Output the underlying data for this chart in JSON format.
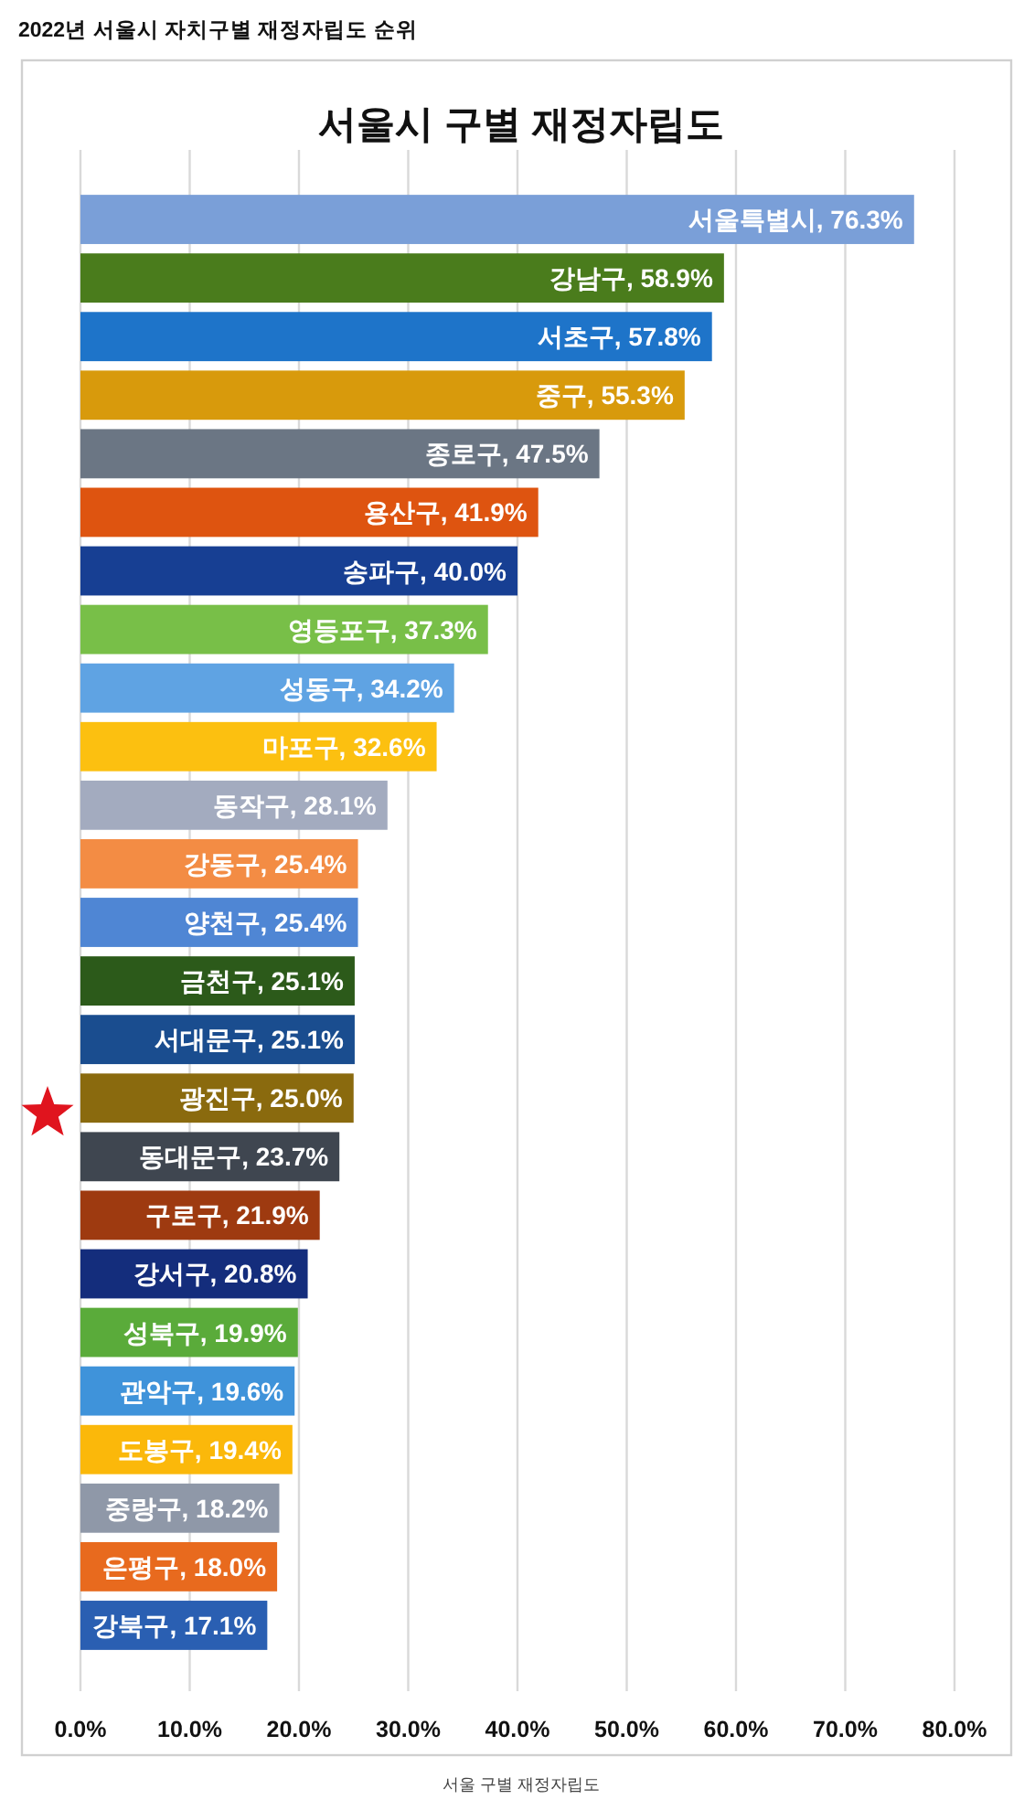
{
  "chart_data": {
    "type": "bar",
    "orientation": "horizontal",
    "title": "서울시 구별 재정자립도",
    "annotations": [
      "2022년 서울시 자치구별 재정자립도 순위",
      "서울 구별 재정자립도"
    ],
    "categories": [
      "서울특별시",
      "강남구",
      "서초구",
      "중구",
      "종로구",
      "용산구",
      "송파구",
      "영등포구",
      "성동구",
      "마포구",
      "동작구",
      "강동구",
      "양천구",
      "금천구",
      "서대문구",
      "광진구",
      "동대문구",
      "구로구",
      "강서구",
      "성북구",
      "관악구",
      "도봉구",
      "중랑구",
      "은평구",
      "강북구"
    ],
    "values": [
      76.3,
      58.9,
      57.8,
      55.3,
      47.5,
      41.9,
      40.0,
      37.3,
      34.2,
      32.6,
      28.1,
      25.4,
      25.4,
      25.1,
      25.1,
      25.0,
      23.7,
      21.9,
      20.8,
      19.9,
      19.6,
      19.4,
      18.2,
      18.0,
      17.1
    ],
    "value_labels": [
      ", 76.3%",
      ", 58.9%",
      ", 57.8%",
      ", 55.3%",
      ", 47.5%",
      ", 41.9%",
      ", 40.0%",
      ", 37.3%",
      ", 34.2%",
      ", 32.6%",
      ", 28.1%",
      ", 25.4%",
      ", 25.4%",
      ", 25.1%",
      ", 25.1%",
      ", 25.0%",
      ", 23.7%",
      ", 21.9%",
      ", 20.8%",
      ", 19.9%",
      ", 19.6%",
      ", 19.4%",
      ", 18.2%",
      ", 18.0%",
      ", 17.1%"
    ],
    "colors": [
      "#7a9fd8",
      "#4a7c1c",
      "#1e74c9",
      "#d89a0c",
      "#6b7684",
      "#de5410",
      "#173f93",
      "#78bf48",
      "#5fa3e3",
      "#fcc010",
      "#a3abbf",
      "#f38c44",
      "#4f86d4",
      "#2c5a1a",
      "#1a4d8f",
      "#8a6a0e",
      "#3f4650",
      "#9e3a10",
      "#142d7c",
      "#5aab3a",
      "#3f93da",
      "#fbb80a",
      "#8f98a8",
      "#e86a1e",
      "#2a5fb2"
    ],
    "xlim": [
      0,
      80
    ],
    "xticks": [
      {
        "value": 0,
        "label": "0.0%"
      },
      {
        "value": 10,
        "label": "10.0%"
      },
      {
        "value": 20,
        "label": "20.0%"
      },
      {
        "value": 30,
        "label": "30.0%"
      },
      {
        "value": 40,
        "label": "40.0%"
      },
      {
        "value": 50,
        "label": "50.0%"
      },
      {
        "value": 60,
        "label": "60.0%"
      },
      {
        "value": 70,
        "label": "70.0%"
      },
      {
        "value": 80,
        "label": "80.0%"
      }
    ],
    "grid": "x"
  }
}
